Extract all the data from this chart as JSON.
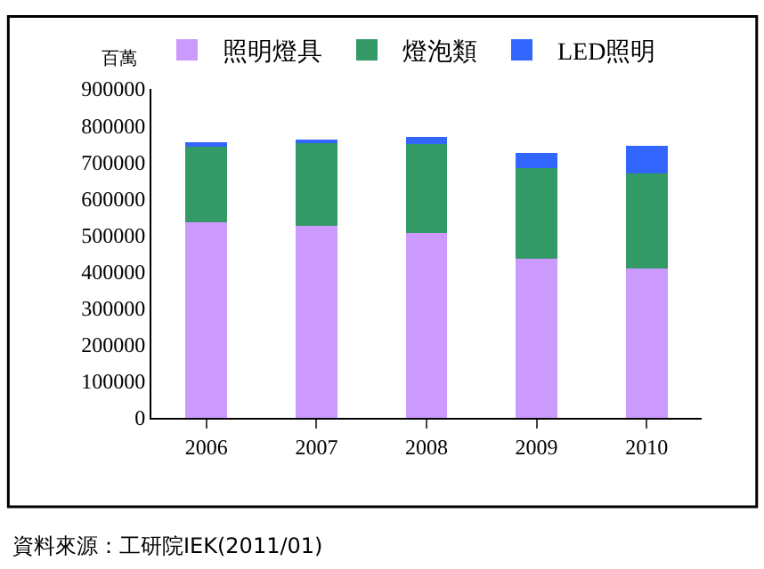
{
  "chart_data": {
    "type": "bar",
    "stacked": true,
    "ylabel": "百萬",
    "categories": [
      "2006",
      "2007",
      "2008",
      "2009",
      "2010"
    ],
    "series": [
      {
        "name": "照明燈具",
        "color": "#cc99ff",
        "values": [
          534000,
          525000,
          506000,
          436000,
          408000
        ]
      },
      {
        "name": "燈泡類",
        "color": "#339966",
        "values": [
          208000,
          227000,
          242000,
          247000,
          261000
        ]
      },
      {
        "name": "LED照明",
        "color": "#3366ff",
        "values": [
          11000,
          10000,
          21000,
          42000,
          75000
        ]
      }
    ],
    "ylim": [
      0,
      900000
    ],
    "yticks": [
      0,
      100000,
      200000,
      300000,
      400000,
      500000,
      600000,
      700000,
      800000,
      900000
    ],
    "legend": "top",
    "annotations": [
      "資料來源：工研院IEK(2011/01)"
    ]
  }
}
